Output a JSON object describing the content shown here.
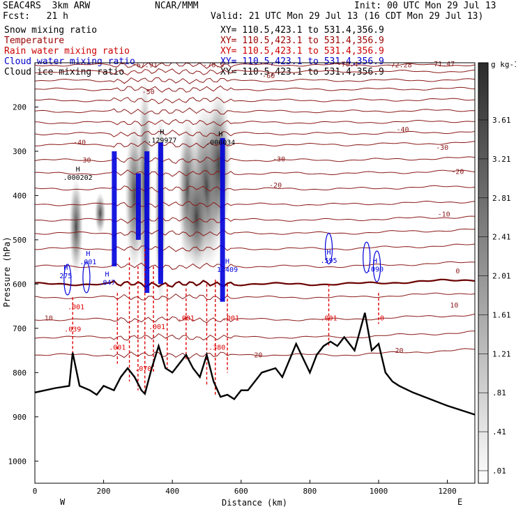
{
  "header": {
    "model": "SEAC4RS  3km ARW",
    "forecast": "Fcst:   21 h",
    "center": "NCAR/MMM",
    "init": "Init: 00 UTC Mon 29 Jul 13",
    "valid": "Valid: 21 UTC Mon 29 Jul 13 (16 CDT Mon 29 Jul 13)"
  },
  "legend": [
    {
      "name": "Snow mixing ratio",
      "color": "#000000",
      "xy": "XY= 110.5,423.1 to 531.4,356.9"
    },
    {
      "name": "Temperature",
      "color": "#990000",
      "xy": "XY= 110.5,423.1 to 531.4,356.9"
    },
    {
      "name": "Rain water mixing ratio",
      "color": "#cc0000",
      "xy": "XY= 110.5,423.1 to 531.4,356.9"
    },
    {
      "name": "Cloud water mixing ratio",
      "color": "#0000cc",
      "xy": "XY= 110.5,423.1 to 531.4,356.9"
    },
    {
      "name": "Cloud ice mixing ratio",
      "color": "#000000",
      "xy": "XY= 110.5,423.1 to 531.4,356.9"
    }
  ],
  "colors": {
    "temperature": "#8b1a1a",
    "freezing": "#6b0000",
    "rain": "#dd0000",
    "cloud_water": "#0000dd",
    "terrain": "#000000"
  },
  "chart_data": {
    "type": "heatmap",
    "xlabel": "Distance (km)",
    "ylabel": "Pressure (hPa)",
    "xlim": [
      0,
      1280
    ],
    "ylim": [
      1050,
      100
    ],
    "x_ticks": [
      "0",
      "200",
      "400",
      "600",
      "800",
      "1000",
      "1200"
    ],
    "x_tick_values": [
      0,
      200,
      400,
      600,
      800,
      1000,
      1200
    ],
    "y_ticks": [
      "200",
      "300",
      "400",
      "500",
      "600",
      "700",
      "800",
      "900",
      "1000"
    ],
    "y_tick_values": [
      200,
      300,
      400,
      500,
      600,
      700,
      800,
      900,
      1000
    ],
    "left_end": "W",
    "right_end": "E",
    "colorbar": {
      "unit": "g kg-1",
      "labels": [
        "3.61",
        "3.21",
        "2.81",
        "2.41",
        "2.01",
        "1.61",
        "1.21",
        ".81",
        ".41",
        ".01"
      ],
      "values": [
        3.61,
        3.21,
        2.81,
        2.41,
        2.01,
        1.61,
        1.21,
        0.81,
        0.41,
        0.01
      ]
    },
    "temperature_contours": [
      {
        "label": "-60",
        "x": 680,
        "p": 135
      },
      {
        "label": "-50",
        "x": 330,
        "p": 171
      },
      {
        "label": "-40",
        "x": 130,
        "p": 285
      },
      {
        "label": "-40",
        "x": 1070,
        "p": 256
      },
      {
        "label": "-30",
        "x": 145,
        "p": 325
      },
      {
        "label": "-30",
        "x": 710,
        "p": 323
      },
      {
        "label": "-30",
        "x": 1185,
        "p": 297
      },
      {
        "label": "-20",
        "x": 700,
        "p": 382
      },
      {
        "label": "-20",
        "x": 1230,
        "p": 351
      },
      {
        "label": "-10",
        "x": 1190,
        "p": 447
      },
      {
        "label": "0",
        "x": 1230,
        "p": 576
      },
      {
        "label": "10",
        "x": 40,
        "p": 682
      },
      {
        "label": "10",
        "x": 1220,
        "p": 653
      },
      {
        "label": "20",
        "x": 650,
        "p": 766
      },
      {
        "label": "20",
        "x": 1060,
        "p": 755
      }
    ],
    "upper_labels": [
      {
        "label": "-67.91",
        "x": 320,
        "p": 110
      },
      {
        "label": "-70.9",
        "x": 520,
        "p": 110
      },
      {
        "label": "-70.4",
        "x": 910,
        "p": 109
      },
      {
        "label": "-72.28",
        "x": 1060,
        "p": 110
      },
      {
        "label": "-71.47",
        "x": 1185,
        "p": 108
      }
    ],
    "snow_maxima": [
      {
        "label": ".000202",
        "x": 125,
        "p": 365
      },
      {
        "label": ".129977",
        "x": 370,
        "p": 280
      },
      {
        "label": ".006034",
        "x": 540,
        "p": 285
      }
    ],
    "cloud_water_maxima": [
      {
        "label": "275",
        "x": 90,
        "p": 587
      },
      {
        "label": ".001",
        "x": 155,
        "p": 555
      },
      {
        "label": ".047",
        "x": 210,
        "p": 602
      },
      {
        "label": ".595",
        "x": 855,
        "p": 552
      },
      {
        "label": ".090",
        "x": 990,
        "p": 572
      },
      {
        "label": "1.409",
        "x": 560,
        "p": 573
      }
    ],
    "rain_labels": [
      {
        "label": ".039",
        "x": 110,
        "p": 707
      },
      {
        "label": ".001",
        "x": 120,
        "p": 657
      },
      {
        "label": ".001",
        "x": 240,
        "p": 748
      },
      {
        "label": ".001",
        "x": 355,
        "p": 702
      },
      {
        "label": ".001",
        "x": 440,
        "p": 682
      },
      {
        "label": ".380",
        "x": 530,
        "p": 748
      },
      {
        "label": ".001",
        "x": 570,
        "p": 682
      },
      {
        "label": ".001",
        "x": 855,
        "p": 682
      },
      {
        "label": "0",
        "x": 1010,
        "p": 682
      },
      {
        "label": ".070",
        "x": 315,
        "p": 796
      }
    ],
    "terrain": {
      "x": [
        0,
        60,
        100,
        110,
        130,
        160,
        180,
        200,
        230,
        250,
        270,
        290,
        310,
        320,
        340,
        360,
        380,
        400,
        420,
        440,
        460,
        480,
        500,
        520,
        540,
        560,
        580,
        600,
        620,
        640,
        660,
        700,
        720,
        760,
        800,
        820,
        840,
        860,
        880,
        900,
        930,
        960,
        980,
        1000,
        1020,
        1040,
        1060,
        1100,
        1150,
        1200,
        1280
      ],
      "p": [
        845,
        835,
        830,
        755,
        830,
        840,
        850,
        830,
        840,
        810,
        790,
        810,
        840,
        848,
        790,
        740,
        790,
        800,
        780,
        760,
        790,
        810,
        760,
        820,
        855,
        850,
        860,
        840,
        840,
        820,
        800,
        790,
        810,
        735,
        800,
        760,
        740,
        730,
        740,
        720,
        750,
        665,
        750,
        735,
        800,
        820,
        830,
        845,
        860,
        875,
        895
      ]
    }
  }
}
